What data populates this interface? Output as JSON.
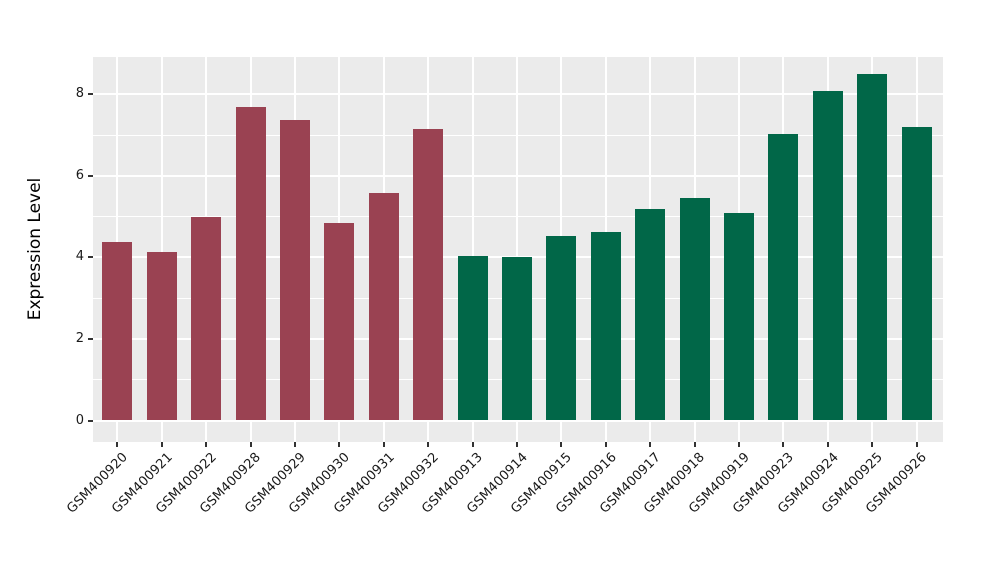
{
  "figure": {
    "background_color": "#ffffff",
    "panel_background_color": "#ebebeb",
    "gridline_color": "#ffffff",
    "axis_text_color": "#1a1a1a",
    "tick_mark_color": "#333333"
  },
  "chart_data": {
    "type": "bar",
    "title": "",
    "xlabel": "",
    "ylabel": "Expression Level",
    "ylim": [
      -0.45,
      8.94
    ],
    "yticks": [
      0,
      2,
      4,
      6,
      8
    ],
    "minor_yticks": [
      1,
      3,
      5,
      7
    ],
    "grid": "white major+minor horizontal and major vertical lines on gray panel",
    "legend_position": "none",
    "categories": [
      "GSM400920",
      "GSM400921",
      "GSM400922",
      "GSM400928",
      "GSM400929",
      "GSM400930",
      "GSM400931",
      "GSM400932",
      "GSM400913",
      "GSM400914",
      "GSM400915",
      "GSM400916",
      "GSM400917",
      "GSM400918",
      "GSM400919",
      "GSM400923",
      "GSM400924",
      "GSM400925",
      "GSM400926"
    ],
    "values": [
      4.37,
      4.13,
      4.98,
      7.69,
      7.38,
      4.85,
      5.57,
      7.15,
      4.04,
      4.02,
      4.53,
      4.63,
      5.19,
      5.45,
      5.09,
      7.03,
      8.08,
      8.5,
      7.19
    ],
    "groups": [
      "group1",
      "group1",
      "group1",
      "group1",
      "group1",
      "group1",
      "group1",
      "group1",
      "group2",
      "group2",
      "group2",
      "group2",
      "group2",
      "group2",
      "group2",
      "group2",
      "group2",
      "group2",
      "group2"
    ],
    "group_colors": {
      "group1": "#9a4252",
      "group2": "#016748"
    }
  }
}
